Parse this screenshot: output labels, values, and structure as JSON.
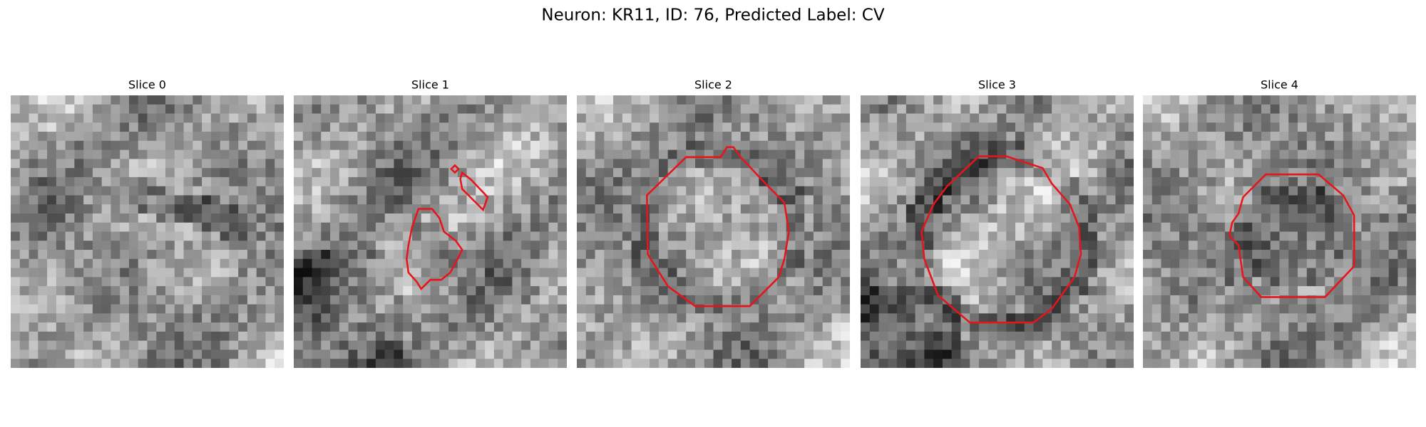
{
  "title": "Neuron: KR11, ID: 76, Predicted Label: CV",
  "panels": [
    {
      "title": "Slice 0"
    },
    {
      "title": "Slice 1"
    },
    {
      "title": "Slice 2"
    },
    {
      "title": "Slice 3"
    },
    {
      "title": "Slice 4"
    }
  ]
}
